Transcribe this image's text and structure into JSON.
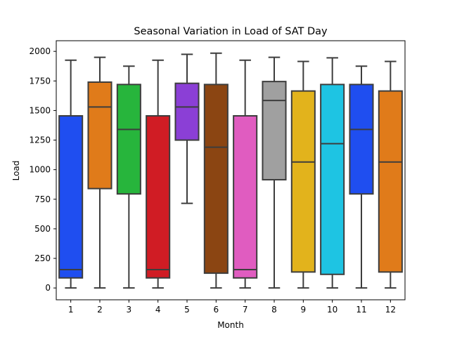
{
  "chart_data": {
    "type": "box",
    "title": "Seasonal Variation in Load of SAT Day",
    "xlabel": "Month",
    "ylabel": "Load",
    "ylim": [
      -100,
      2090
    ],
    "yticks": [
      0,
      250,
      500,
      750,
      1000,
      1250,
      1500,
      1750,
      2000
    ],
    "ytick_labels": [
      "0",
      "250",
      "500",
      "750",
      "1000",
      "1250",
      "1500",
      "1750",
      "2000"
    ],
    "categories": [
      "1",
      "2",
      "3",
      "4",
      "5",
      "6",
      "7",
      "8",
      "9",
      "10",
      "11",
      "12"
    ],
    "boxes": [
      {
        "month": "1",
        "whisker_low": 0,
        "q1": 85,
        "median": 155,
        "q3": 1455,
        "whisker_high": 1925,
        "color": "#1f4ef0"
      },
      {
        "month": "2",
        "whisker_low": 0,
        "q1": 840,
        "median": 1530,
        "q3": 1740,
        "whisker_high": 1950,
        "color": "#e07b1a"
      },
      {
        "month": "3",
        "whisker_low": 0,
        "q1": 795,
        "median": 1340,
        "q3": 1720,
        "whisker_high": 1875,
        "color": "#27b53c"
      },
      {
        "month": "4",
        "whisker_low": 0,
        "q1": 85,
        "median": 155,
        "q3": 1455,
        "whisker_high": 1925,
        "color": "#d01c24"
      },
      {
        "month": "5",
        "whisker_low": 715,
        "q1": 1250,
        "median": 1530,
        "q3": 1730,
        "whisker_high": 1975,
        "color": "#8b3fd6"
      },
      {
        "month": "6",
        "whisker_low": 0,
        "q1": 125,
        "median": 1190,
        "q3": 1720,
        "whisker_high": 1985,
        "color": "#8b4512"
      },
      {
        "month": "7",
        "whisker_low": 0,
        "q1": 85,
        "median": 155,
        "q3": 1455,
        "whisker_high": 1925,
        "color": "#e05cc0"
      },
      {
        "month": "8",
        "whisker_low": 0,
        "q1": 915,
        "median": 1585,
        "q3": 1745,
        "whisker_high": 1950,
        "color": "#a0a0a0"
      },
      {
        "month": "9",
        "whisker_low": 0,
        "q1": 135,
        "median": 1065,
        "q3": 1665,
        "whisker_high": 1915,
        "color": "#e2b31c"
      },
      {
        "month": "10",
        "whisker_low": 0,
        "q1": 115,
        "median": 1220,
        "q3": 1720,
        "whisker_high": 1945,
        "color": "#1ec4e3"
      },
      {
        "month": "11",
        "whisker_low": 0,
        "q1": 795,
        "median": 1340,
        "q3": 1720,
        "whisker_high": 1875,
        "color": "#1f4ef0"
      },
      {
        "month": "12",
        "whisker_low": 0,
        "q1": 135,
        "median": 1065,
        "q3": 1665,
        "whisker_high": 1915,
        "color": "#e07b1a"
      }
    ],
    "grid": false,
    "legend": "none"
  }
}
